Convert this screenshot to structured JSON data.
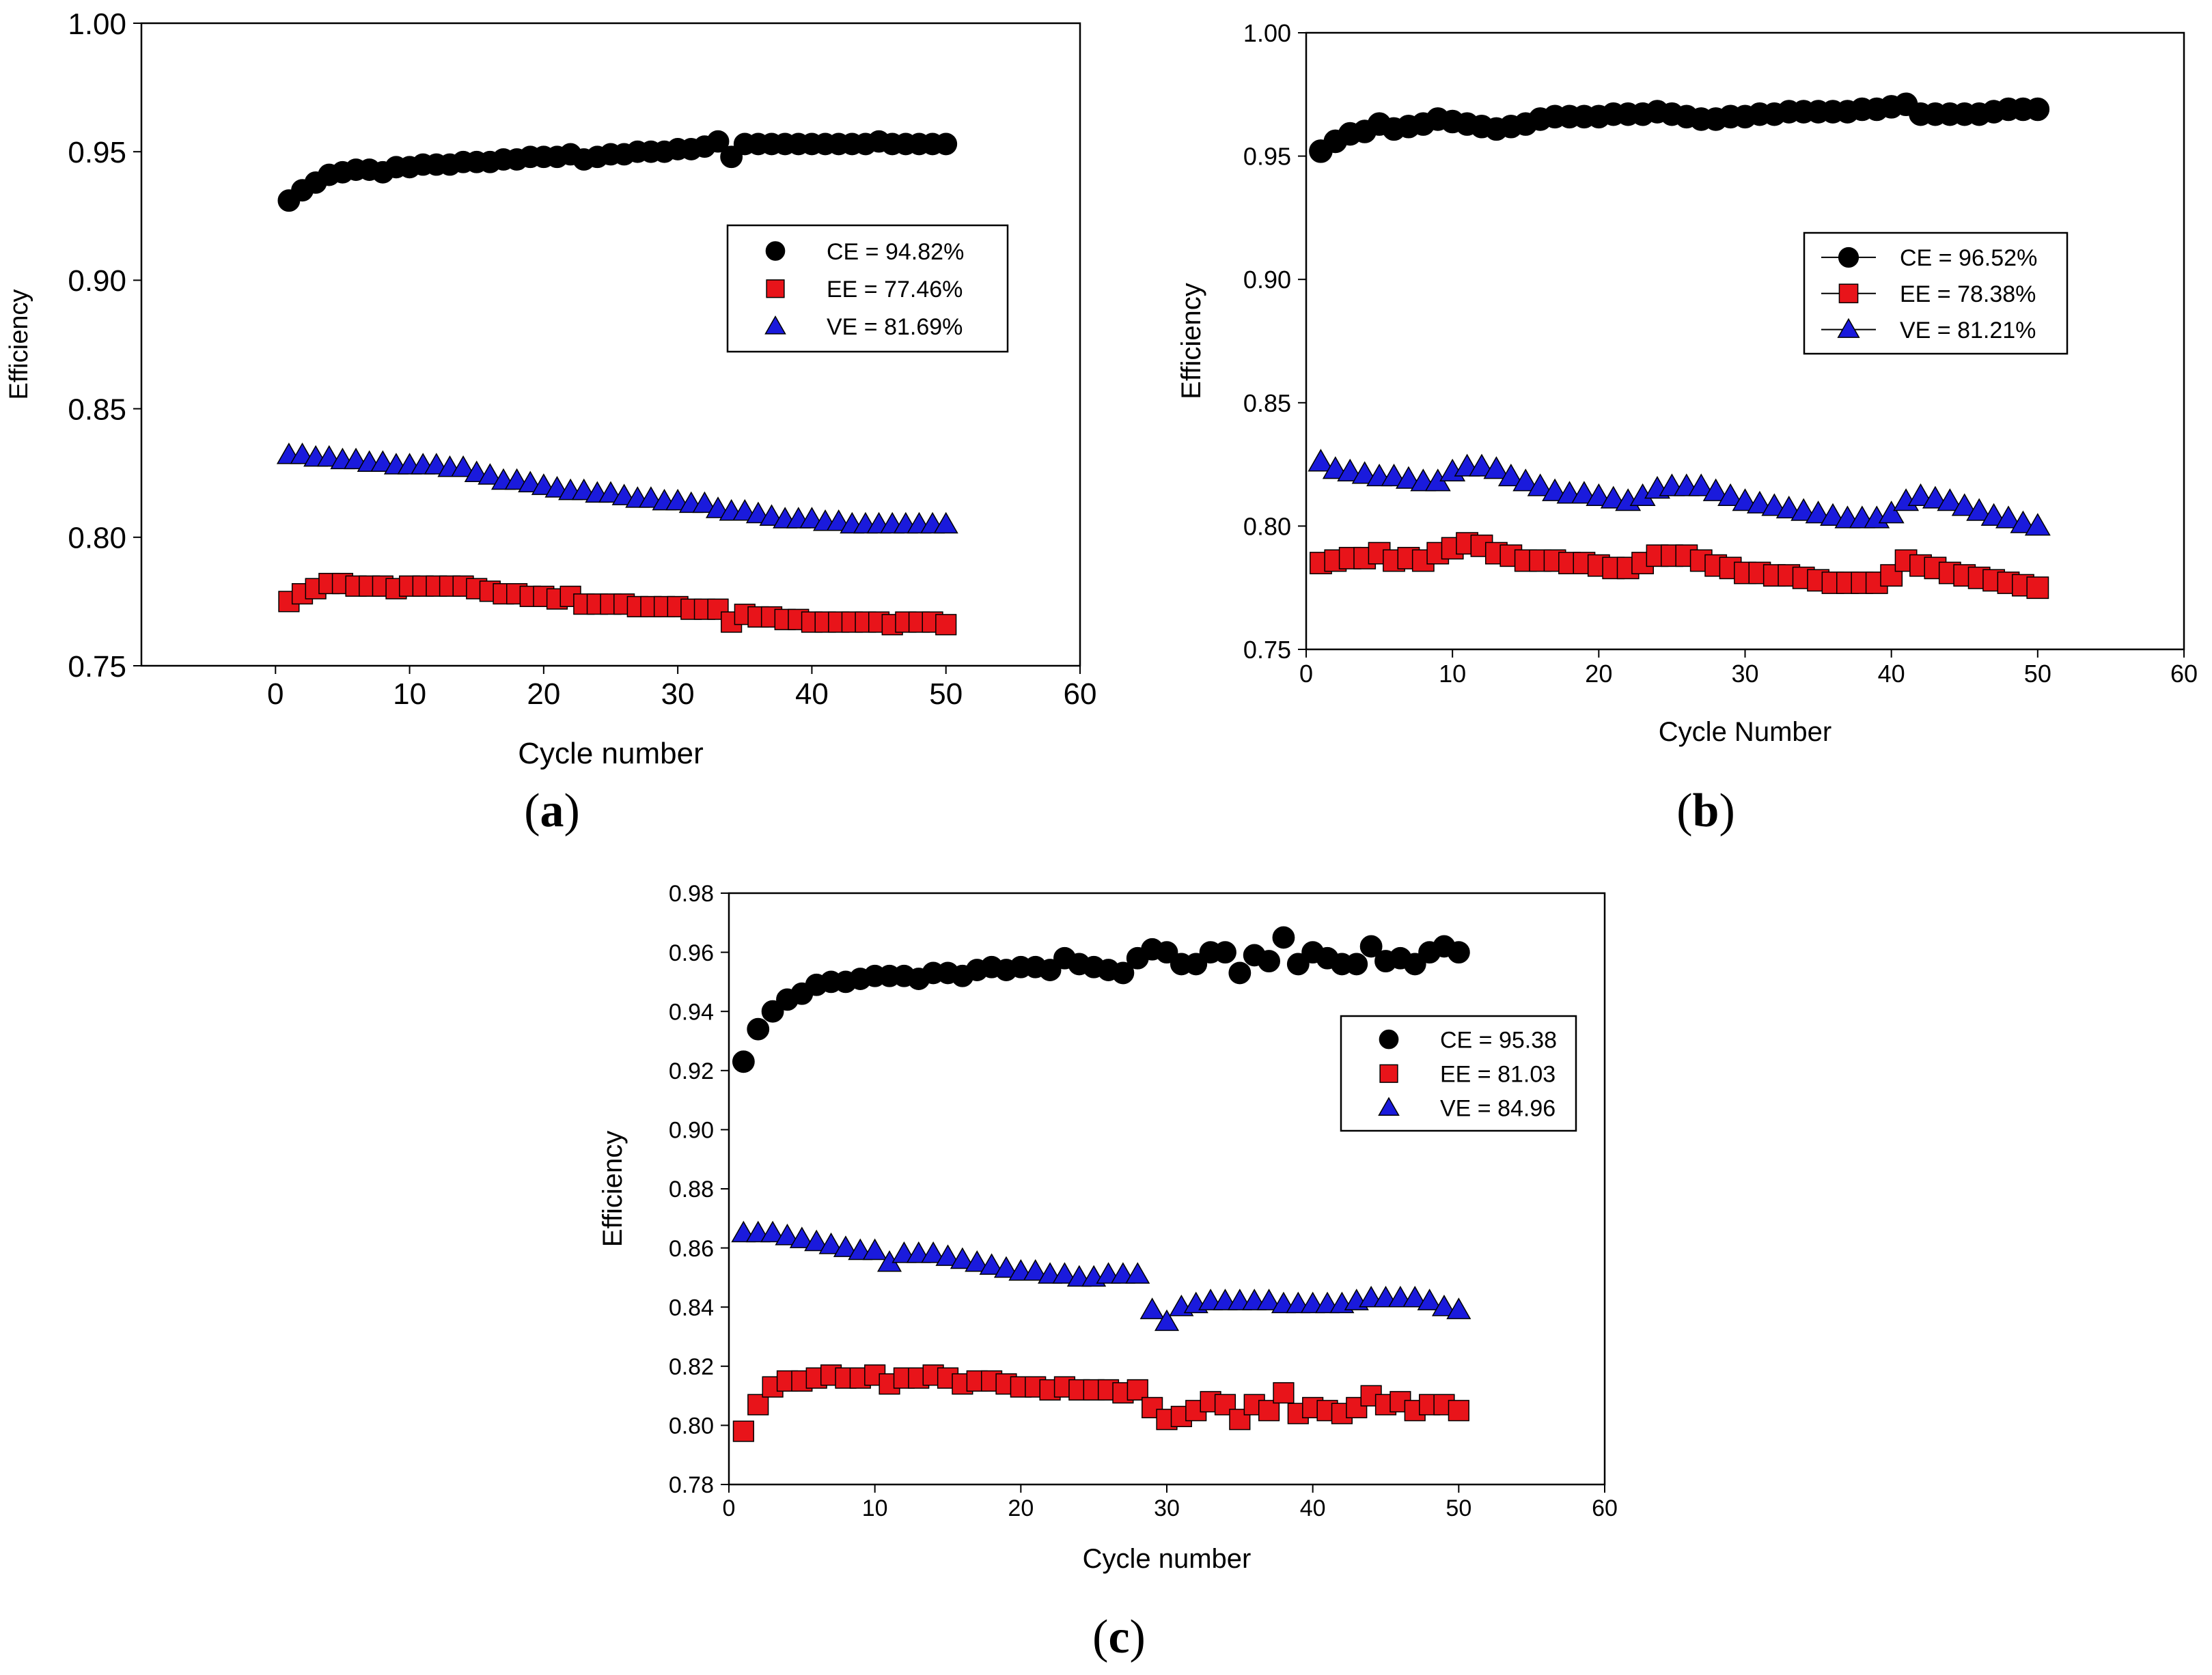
{
  "figure": {
    "name": "cycling-efficiency-figure"
  },
  "chart_data": [
    {
      "panel": "a",
      "type": "scatter",
      "panel_label": "a",
      "xlabel": "Cycle number",
      "ylabel": "Efficiency",
      "xlim": [
        -10,
        60
      ],
      "ylim": [
        0.75,
        1.0
      ],
      "xticks": [
        0,
        10,
        20,
        30,
        40,
        50,
        60
      ],
      "yticks": [
        0.75,
        0.8,
        0.85,
        0.9,
        0.95,
        1.0
      ],
      "ytick_labels": [
        "0.75",
        "0.80",
        "0.85",
        "0.90",
        "0.95",
        "1.00"
      ],
      "legend": [
        "CE = 94.82%",
        "EE = 77.46%",
        "VE = 81.69%"
      ],
      "legend_lines": false,
      "legend_position": "center-right",
      "series": [
        {
          "name": "CE",
          "marker": "circle",
          "color": "#000000",
          "values": [
            0.931,
            0.935,
            0.938,
            0.941,
            0.942,
            0.943,
            0.943,
            0.942,
            0.944,
            0.944,
            0.945,
            0.945,
            0.945,
            0.946,
            0.946,
            0.946,
            0.947,
            0.947,
            0.948,
            0.948,
            0.948,
            0.949,
            0.947,
            0.948,
            0.949,
            0.949,
            0.95,
            0.95,
            0.95,
            0.951,
            0.951,
            0.952,
            0.954,
            0.948,
            0.953,
            0.953,
            0.953,
            0.953,
            0.953,
            0.953,
            0.953,
            0.953,
            0.953,
            0.953,
            0.954,
            0.953,
            0.953,
            0.953,
            0.953,
            0.953
          ]
        },
        {
          "name": "EE",
          "marker": "square",
          "color": "#e8141a",
          "values": [
            0.775,
            0.778,
            0.78,
            0.782,
            0.782,
            0.781,
            0.781,
            0.781,
            0.78,
            0.781,
            0.781,
            0.781,
            0.781,
            0.781,
            0.78,
            0.779,
            0.778,
            0.778,
            0.777,
            0.777,
            0.776,
            0.777,
            0.774,
            0.774,
            0.774,
            0.774,
            0.773,
            0.773,
            0.773,
            0.773,
            0.772,
            0.772,
            0.772,
            0.767,
            0.77,
            0.769,
            0.769,
            0.768,
            0.768,
            0.767,
            0.767,
            0.767,
            0.767,
            0.767,
            0.767,
            0.766,
            0.767,
            0.767,
            0.767,
            0.766
          ]
        },
        {
          "name": "VE",
          "marker": "triangle",
          "color": "#1a1adc",
          "values": [
            0.832,
            0.832,
            0.831,
            0.831,
            0.83,
            0.83,
            0.829,
            0.829,
            0.828,
            0.828,
            0.828,
            0.828,
            0.827,
            0.827,
            0.825,
            0.824,
            0.822,
            0.822,
            0.821,
            0.82,
            0.819,
            0.818,
            0.818,
            0.817,
            0.817,
            0.816,
            0.815,
            0.815,
            0.814,
            0.814,
            0.813,
            0.813,
            0.811,
            0.81,
            0.81,
            0.809,
            0.808,
            0.807,
            0.807,
            0.807,
            0.806,
            0.806,
            0.805,
            0.805,
            0.805,
            0.805,
            0.805,
            0.805,
            0.805,
            0.805
          ]
        }
      ]
    },
    {
      "panel": "b",
      "type": "line",
      "panel_label": "b",
      "xlabel": "Cycle Number",
      "ylabel": "Efficiency",
      "xlim": [
        0,
        60
      ],
      "ylim": [
        0.75,
        1.0
      ],
      "xticks": [
        0,
        10,
        20,
        30,
        40,
        50,
        60
      ],
      "yticks": [
        0.75,
        0.8,
        0.85,
        0.9,
        0.95,
        1.0
      ],
      "ytick_labels": [
        "0.75",
        "0.80",
        "0.85",
        "0.90",
        "0.95",
        "1.00"
      ],
      "legend": [
        "CE = 96.52%",
        "EE = 78.38%",
        "VE = 81.21%"
      ],
      "legend_lines": true,
      "legend_position": "upper-right",
      "series": [
        {
          "name": "CE",
          "marker": "circle",
          "color": "#000000",
          "values": [
            0.952,
            0.956,
            0.959,
            0.96,
            0.963,
            0.961,
            0.962,
            0.963,
            0.965,
            0.964,
            0.963,
            0.962,
            0.961,
            0.962,
            0.963,
            0.965,
            0.966,
            0.966,
            0.966,
            0.966,
            0.967,
            0.967,
            0.967,
            0.968,
            0.967,
            0.966,
            0.965,
            0.965,
            0.966,
            0.966,
            0.967,
            0.967,
            0.968,
            0.968,
            0.968,
            0.968,
            0.968,
            0.969,
            0.969,
            0.97,
            0.971,
            0.967,
            0.967,
            0.967,
            0.967,
            0.967,
            0.968,
            0.969,
            0.969,
            0.969
          ]
        },
        {
          "name": "EE",
          "marker": "square",
          "color": "#e8141a",
          "values": [
            0.785,
            0.786,
            0.787,
            0.787,
            0.789,
            0.786,
            0.787,
            0.786,
            0.789,
            0.791,
            0.793,
            0.792,
            0.789,
            0.788,
            0.786,
            0.786,
            0.786,
            0.785,
            0.785,
            0.784,
            0.783,
            0.783,
            0.785,
            0.788,
            0.788,
            0.788,
            0.786,
            0.784,
            0.783,
            0.781,
            0.781,
            0.78,
            0.78,
            0.779,
            0.778,
            0.777,
            0.777,
            0.777,
            0.777,
            0.78,
            0.786,
            0.784,
            0.783,
            0.781,
            0.78,
            0.779,
            0.778,
            0.777,
            0.776,
            0.775
          ]
        },
        {
          "name": "VE",
          "marker": "triangle",
          "color": "#1a1adc",
          "values": [
            0.826,
            0.823,
            0.822,
            0.821,
            0.82,
            0.82,
            0.819,
            0.818,
            0.818,
            0.822,
            0.824,
            0.824,
            0.823,
            0.82,
            0.818,
            0.816,
            0.814,
            0.813,
            0.813,
            0.812,
            0.811,
            0.81,
            0.812,
            0.815,
            0.816,
            0.816,
            0.816,
            0.814,
            0.812,
            0.81,
            0.809,
            0.808,
            0.807,
            0.806,
            0.805,
            0.804,
            0.803,
            0.803,
            0.803,
            0.805,
            0.81,
            0.812,
            0.811,
            0.81,
            0.808,
            0.806,
            0.804,
            0.803,
            0.801,
            0.8
          ]
        }
      ]
    },
    {
      "panel": "c",
      "type": "scatter",
      "panel_label": "c",
      "xlabel": "Cycle number",
      "ylabel": "Efficiency",
      "xlim": [
        0,
        60
      ],
      "ylim": [
        0.78,
        0.98
      ],
      "xticks": [
        0,
        10,
        20,
        30,
        40,
        50,
        60
      ],
      "yticks": [
        0.78,
        0.8,
        0.82,
        0.84,
        0.86,
        0.88,
        0.9,
        0.92,
        0.94,
        0.96,
        0.98
      ],
      "ytick_labels": [
        "0.78",
        "0.80",
        "0.82",
        "0.84",
        "0.86",
        "0.88",
        "0.90",
        "0.92",
        "0.94",
        "0.96",
        "0.98"
      ],
      "legend": [
        "CE = 95.38",
        "EE = 81.03",
        "VE = 84.96"
      ],
      "legend_lines": false,
      "legend_position": "center-right",
      "series": [
        {
          "name": "CE",
          "marker": "circle",
          "color": "#000000",
          "values": [
            0.923,
            0.934,
            0.94,
            0.944,
            0.946,
            0.949,
            0.95,
            0.95,
            0.951,
            0.952,
            0.952,
            0.952,
            0.951,
            0.953,
            0.953,
            0.952,
            0.954,
            0.955,
            0.954,
            0.955,
            0.955,
            0.954,
            0.958,
            0.956,
            0.955,
            0.954,
            0.953,
            0.958,
            0.961,
            0.96,
            0.956,
            0.956,
            0.96,
            0.96,
            0.953,
            0.959,
            0.957,
            0.965,
            0.956,
            0.96,
            0.958,
            0.956,
            0.956,
            0.962,
            0.957,
            0.958,
            0.956,
            0.96,
            0.962,
            0.96
          ]
        },
        {
          "name": "EE",
          "marker": "square",
          "color": "#e8141a",
          "values": [
            0.798,
            0.807,
            0.813,
            0.815,
            0.815,
            0.816,
            0.817,
            0.816,
            0.816,
            0.817,
            0.814,
            0.816,
            0.816,
            0.817,
            0.816,
            0.814,
            0.815,
            0.815,
            0.814,
            0.813,
            0.813,
            0.812,
            0.813,
            0.812,
            0.812,
            0.812,
            0.811,
            0.812,
            0.806,
            0.802,
            0.803,
            0.805,
            0.808,
            0.807,
            0.802,
            0.807,
            0.805,
            0.811,
            0.804,
            0.806,
            0.805,
            0.804,
            0.806,
            0.81,
            0.807,
            0.808,
            0.805,
            0.807,
            0.807,
            0.805
          ]
        },
        {
          "name": "VE",
          "marker": "triangle",
          "color": "#1a1adc",
          "values": [
            0.865,
            0.865,
            0.865,
            0.864,
            0.863,
            0.862,
            0.861,
            0.86,
            0.859,
            0.859,
            0.855,
            0.858,
            0.858,
            0.858,
            0.857,
            0.856,
            0.855,
            0.854,
            0.853,
            0.852,
            0.852,
            0.851,
            0.851,
            0.85,
            0.85,
            0.851,
            0.851,
            0.851,
            0.839,
            0.835,
            0.84,
            0.841,
            0.842,
            0.842,
            0.842,
            0.842,
            0.842,
            0.841,
            0.841,
            0.841,
            0.841,
            0.841,
            0.842,
            0.843,
            0.843,
            0.843,
            0.843,
            0.842,
            0.84,
            0.839
          ]
        }
      ]
    }
  ]
}
